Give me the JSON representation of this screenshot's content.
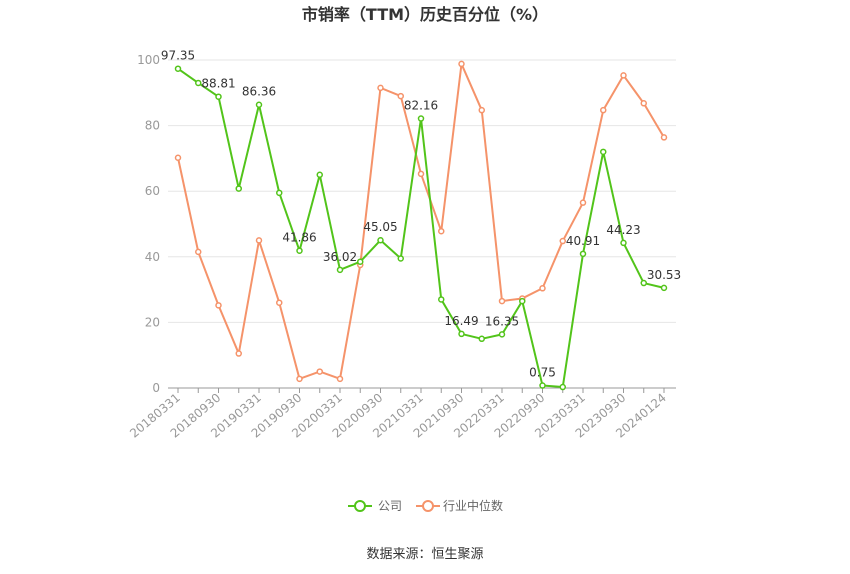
{
  "chart_data": {
    "type": "line",
    "title": "市销率（TTM）历史百分位（%）",
    "source": "数据来源：恒生聚源",
    "ylim": [
      0,
      100
    ],
    "yticks": [
      0,
      20,
      40,
      60,
      80,
      100
    ],
    "grid": true,
    "legend_position": "bottom-center",
    "x_tick_labels": [
      "20180331",
      "20180930",
      "20190331",
      "20190930",
      "20200331",
      "20200930",
      "20210331",
      "20210930",
      "20220331",
      "20220930",
      "20230331",
      "20230930",
      "20240124"
    ],
    "x": [
      "20180331",
      "20180630",
      "20180930",
      "20181231",
      "20190331",
      "20190630",
      "20190930",
      "20191231",
      "20200331",
      "20200630",
      "20200930",
      "20201231",
      "20210331",
      "20210630",
      "20210930",
      "20211231",
      "20220331",
      "20220630",
      "20220930",
      "20221231",
      "20230331",
      "20230630",
      "20230930",
      "20231231",
      "20240124"
    ],
    "series": [
      {
        "name": "公司",
        "color": "#52c41a",
        "values": [
          97.35,
          93.0,
          88.81,
          60.8,
          86.36,
          59.5,
          41.86,
          65.0,
          36.02,
          38.5,
          45.05,
          39.5,
          82.16,
          27.0,
          16.49,
          15.0,
          16.35,
          26.5,
          0.75,
          0.3,
          40.91,
          72.0,
          44.23,
          32.0,
          30.53
        ],
        "labels": [
          "97.35",
          "",
          "88.81",
          "",
          "86.36",
          "",
          "41.86",
          "",
          "36.02",
          "",
          "45.05",
          "",
          "82.16",
          "",
          "16.49",
          "",
          "16.35",
          "",
          "0.75",
          "",
          "40.91",
          "",
          "44.23",
          "",
          "30.53"
        ]
      },
      {
        "name": "行业中位数",
        "color": "#f5936a",
        "values": [
          70.2,
          41.5,
          25.2,
          10.5,
          45.0,
          26.0,
          2.8,
          5.0,
          2.8,
          37.5,
          91.5,
          89.0,
          65.3,
          47.8,
          98.8,
          84.7,
          26.5,
          27.3,
          30.4,
          44.8,
          56.5,
          84.7,
          95.3,
          86.8,
          76.4
        ]
      }
    ]
  }
}
